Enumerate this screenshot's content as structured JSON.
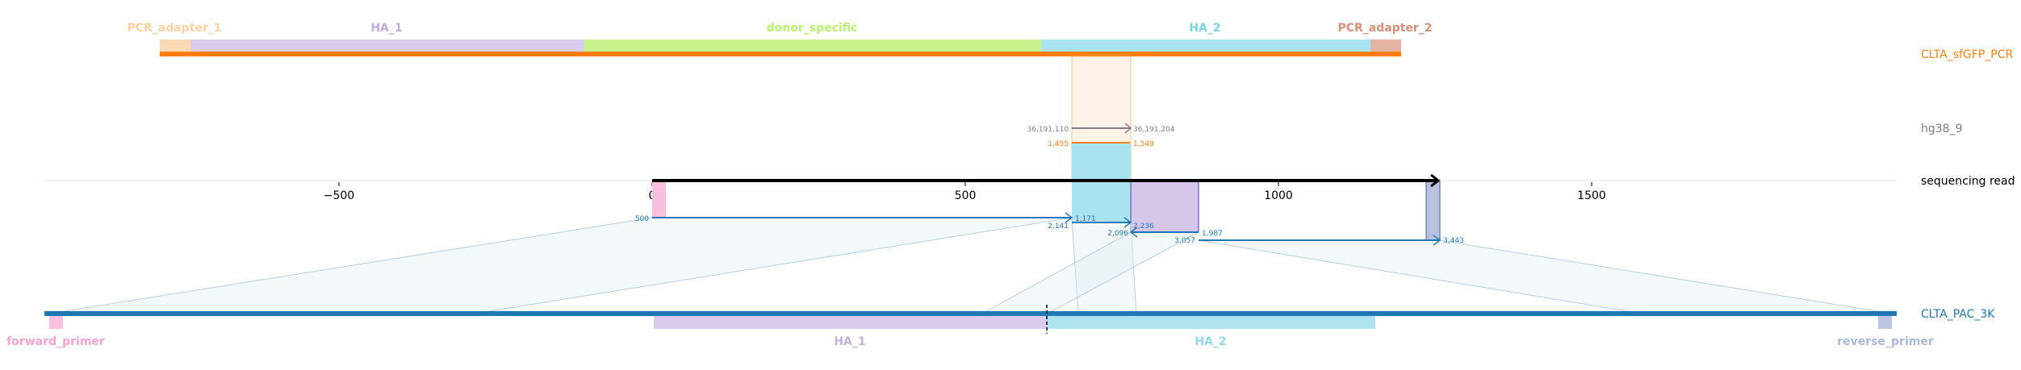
{
  "top_features": [
    {
      "label": "PCR_adapter_1",
      "color": "#fdd0a2"
    },
    {
      "label": "HA_1",
      "color": "#bcaee0"
    },
    {
      "label": "donor_specific",
      "color": "#b9f26e"
    },
    {
      "label": "HA_2",
      "color": "#7fd3e6"
    },
    {
      "label": "PCR_adapter_2",
      "color": "#d9907a"
    }
  ],
  "bottom_features": [
    {
      "label": "forward_primer",
      "color": "#f5a3cf"
    },
    {
      "label": "HA_1",
      "color": "#c3b0dd"
    },
    {
      "label": "HA_2",
      "color": "#8fd8ea"
    },
    {
      "label": "reverse_primer",
      "color": "#a9b7dc"
    }
  ],
  "track_labels": {
    "pcr": "CLTA_sfGFP_PCR",
    "genome": "hg38_9",
    "read": "sequencing read",
    "plasmid": "CLTA_PAC_3K"
  },
  "colors": {
    "pcr": "#ff7f0e",
    "genome": "#7f7f7f",
    "read": "#000000",
    "plasmid": "#1f77b4"
  },
  "axis_ticks": [
    -500,
    0,
    500,
    1000,
    1500
  ],
  "axis_tick_labels": [
    "−500",
    "0",
    "500",
    "1000",
    "1500"
  ],
  "alignments": {
    "genome_start": "36,191,110",
    "genome_end": "36,191,204",
    "genome_read_start": "1,455",
    "genome_read_end": "1,549",
    "a1_start": "500",
    "a1_end": "1,171",
    "a1_read_start": "2,141",
    "a2_start": "2,096",
    "a2_end": "2,236",
    "a2_read_end": "1,987",
    "a3_start": "3,057",
    "a3_end": "3,443"
  }
}
